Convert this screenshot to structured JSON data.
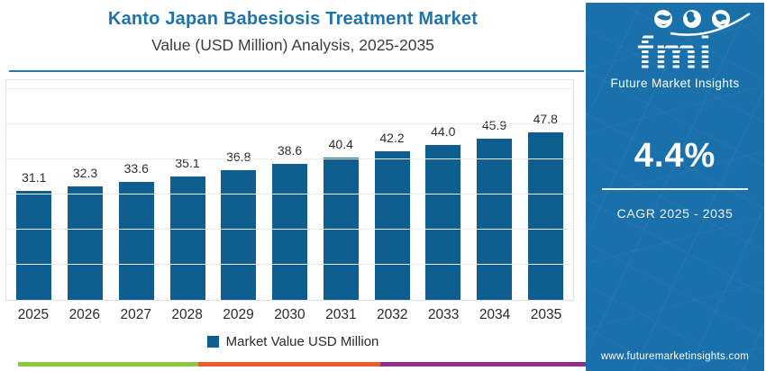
{
  "header": {
    "title": "Kanto Japan Babesiosis Treatment Market",
    "subtitle": "Value (USD Million) Analysis, 2025-2035"
  },
  "chart_data": {
    "type": "bar",
    "title": "Kanto Japan Babesiosis Treatment Market Value (USD Million) Analysis, 2025-2035",
    "categories": [
      "2025",
      "2026",
      "2027",
      "2028",
      "2029",
      "2030",
      "2031",
      "2032",
      "2033",
      "2034",
      "2035"
    ],
    "values": [
      31.1,
      32.3,
      33.6,
      35.1,
      36.8,
      38.6,
      40.4,
      42.2,
      44.0,
      45.9,
      47.8
    ],
    "xlabel": "",
    "ylabel": "",
    "ylim": [
      0,
      60
    ],
    "grid": "horizontal, every 10 units, y-axis labels hidden",
    "legend_position": "bottom",
    "legend_label": "Market Value USD Million"
  },
  "legend": {
    "label": "Market Value USD Million"
  },
  "sidebar": {
    "logo": {
      "text": "fmi",
      "subtext": "Future Market Insights"
    },
    "cagr": {
      "value": "4.4%",
      "label": "CAGR 2025 - 2035"
    },
    "website": "www.futuremarketinsights.com"
  },
  "colors": {
    "bar": "#0e5f90",
    "title": "#1b74ae",
    "divider": "#2879b3",
    "sidebar_bg": "#1a70ab",
    "stripe_green": "#8dc63f",
    "stripe_orange": "#f05a28",
    "stripe_purple": "#8f2e90"
  },
  "footer_stripe": {
    "colors": [
      "#8dc63f",
      "#f05a28",
      "#8f2e90"
    ]
  }
}
